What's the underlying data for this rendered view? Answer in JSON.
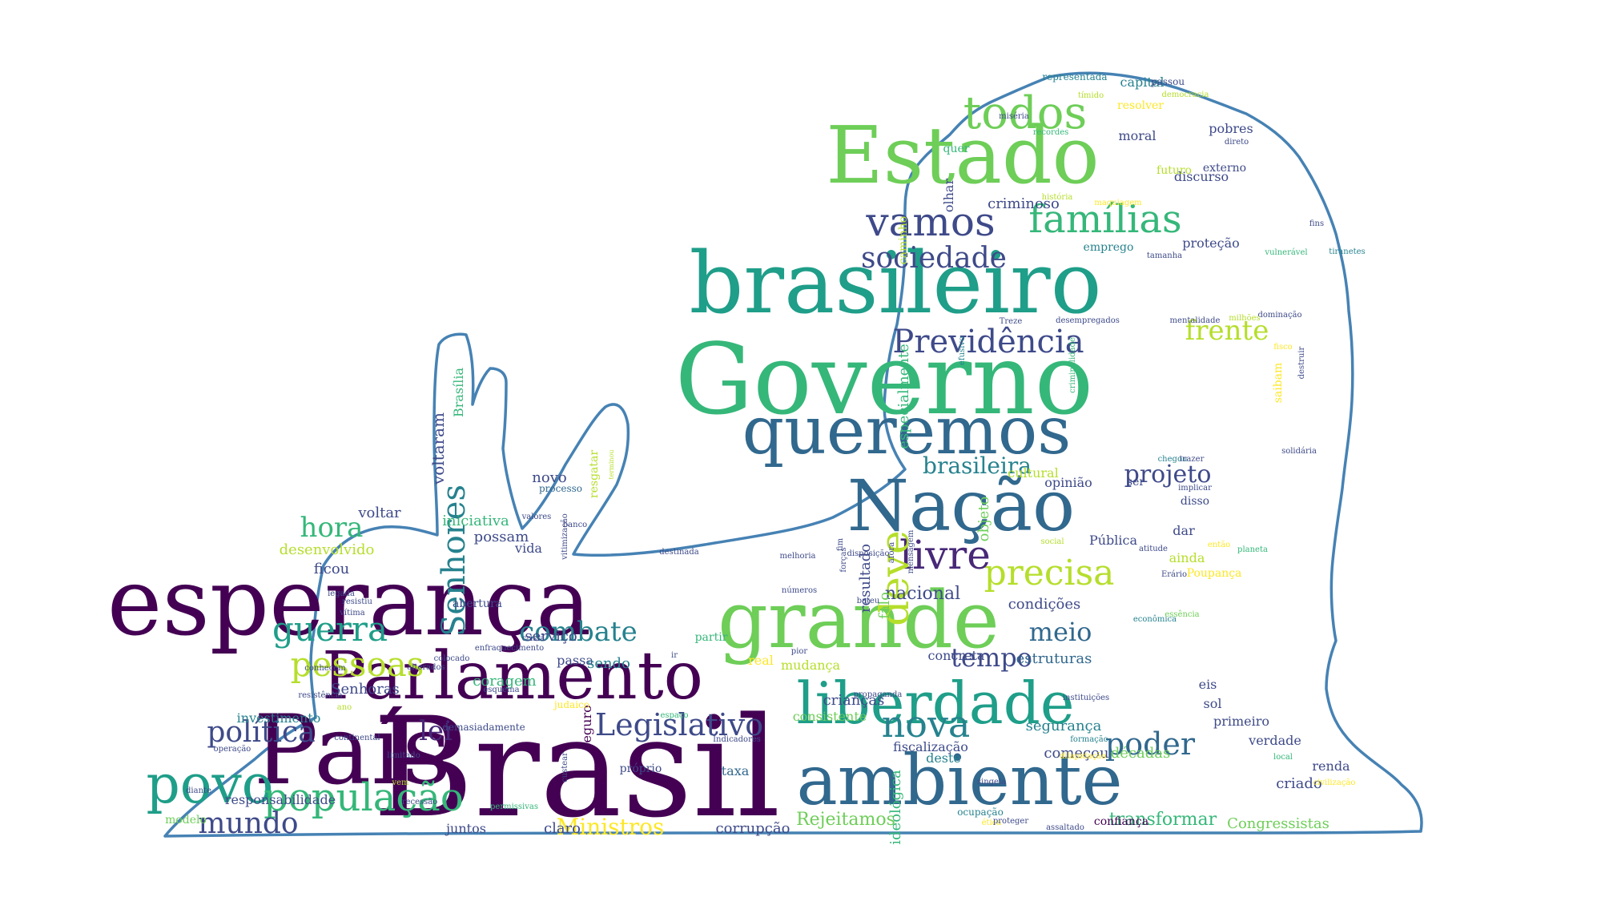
{
  "outline_color": "#4682b4",
  "palette": [
    "#440154",
    "#482878",
    "#3e4a89",
    "#31688e",
    "#26828e",
    "#1f9e89",
    "#35b779",
    "#6ece58",
    "#b5de2b",
    "#fde725"
  ],
  "words": [
    {
      "text": "Brasil",
      "c": "#440154"
    },
    {
      "text": "País",
      "c": "#440154"
    },
    {
      "text": "esperança",
      "c": "#440154"
    },
    {
      "text": "Governo",
      "c": "#35b779"
    },
    {
      "text": "brasileiro",
      "c": "#1f9e89"
    },
    {
      "text": "Estado",
      "c": "#6ece58"
    },
    {
      "text": "Nação",
      "c": "#31688e"
    },
    {
      "text": "queremos",
      "c": "#31688e"
    },
    {
      "text": "grande",
      "c": "#6ece58"
    },
    {
      "text": "ambiente",
      "c": "#31688e"
    },
    {
      "text": "Parlamento",
      "c": "#440154"
    },
    {
      "text": "liberdade",
      "c": "#1f9e89"
    },
    {
      "text": "povo",
      "c": "#1f9e89"
    },
    {
      "text": "população",
      "c": "#35b779"
    },
    {
      "text": "pessoas",
      "c": "#b5de2b"
    },
    {
      "text": "guerra",
      "c": "#1f9e89"
    },
    {
      "text": "todos",
      "c": "#6ece58"
    },
    {
      "text": "famílias",
      "c": "#35b779"
    },
    {
      "text": "vamos",
      "c": "#3e4a89"
    },
    {
      "text": "Previdência",
      "c": "#3e4a89"
    },
    {
      "text": "sociedade",
      "c": "#3e4a89"
    },
    {
      "text": "Legislativo",
      "c": "#3e4a89"
    },
    {
      "text": "precisa",
      "c": "#b5de2b"
    },
    {
      "text": "livre",
      "c": "#482878"
    },
    {
      "text": "nova",
      "c": "#26828e"
    },
    {
      "text": "poder",
      "c": "#31688e"
    },
    {
      "text": "deve",
      "c": "#b5de2b"
    },
    {
      "text": "combate",
      "c": "#26828e"
    },
    {
      "text": "lei",
      "c": "#482878"
    },
    {
      "text": "política",
      "c": "#3e4a89"
    },
    {
      "text": "mundo",
      "c": "#3e4a89"
    },
    {
      "text": "frente",
      "c": "#b5de2b"
    },
    {
      "text": "projeto",
      "c": "#3e4a89"
    },
    {
      "text": "Senhores",
      "c": "#26828e"
    },
    {
      "text": "meio",
      "c": "#31688e"
    },
    {
      "text": "tempo",
      "c": "#3e4a89"
    },
    {
      "text": "brasileira",
      "c": "#26828e"
    },
    {
      "text": "hora",
      "c": "#35b779"
    },
    {
      "text": "Ministros",
      "c": "#fde725"
    },
    {
      "text": "Rejeitamos",
      "c": "#6ece58"
    },
    {
      "text": "transformar",
      "c": "#35b779"
    },
    {
      "text": "Congressistas",
      "c": "#6ece58"
    },
    {
      "text": "nacional",
      "c": "#3e4a89"
    },
    {
      "text": "condições",
      "c": "#3e4a89"
    },
    {
      "text": "estruturas",
      "c": "#31688e"
    },
    {
      "text": "segurança",
      "c": "#26828e"
    },
    {
      "text": "décadas",
      "c": "#6ece58"
    },
    {
      "text": "criado",
      "c": "#3e4a89"
    },
    {
      "text": "começou",
      "c": "#3e4a89"
    },
    {
      "text": "confiança",
      "c": "#440154"
    },
    {
      "text": "corrupção",
      "c": "#3e4a89"
    },
    {
      "text": "especialmente",
      "c": "#35b779"
    },
    {
      "text": "ideológica",
      "c": "#35b779"
    },
    {
      "text": "resultado",
      "c": "#3e4a89"
    },
    {
      "text": "falo",
      "c": "#6ece58"
    },
    {
      "text": "objeto",
      "c": "#6ece58"
    },
    {
      "text": "voltaram",
      "c": "#3e4a89"
    },
    {
      "text": "Brasília",
      "c": "#35b779"
    },
    {
      "text": "desenvolvido",
      "c": "#b5de2b"
    },
    {
      "text": "ficou",
      "c": "#3e4a89"
    },
    {
      "text": "voltar",
      "c": "#3e4a89"
    },
    {
      "text": "possam",
      "c": "#3e4a89"
    },
    {
      "text": "vida",
      "c": "#3e4a89"
    },
    {
      "text": "iniciativa",
      "c": "#35b779"
    },
    {
      "text": "novo",
      "c": "#3e4a89"
    },
    {
      "text": "processo",
      "c": "#31688e"
    },
    {
      "text": "resgatar",
      "c": "#b5de2b"
    },
    {
      "text": "terminou",
      "c": "#b5de2b"
    },
    {
      "text": "Senhoras",
      "c": "#3e4a89"
    },
    {
      "text": "coragem",
      "c": "#35b779"
    },
    {
      "text": "passa",
      "c": "#3e4a89"
    },
    {
      "text": "sendo",
      "c": "#26828e"
    },
    {
      "text": "serviço",
      "c": "#3e4a89"
    },
    {
      "text": "mudança",
      "c": "#b5de2b"
    },
    {
      "text": "real",
      "c": "#fde725"
    },
    {
      "text": "partir",
      "c": "#35b779"
    },
    {
      "text": "crianças",
      "c": "#3e4a89"
    },
    {
      "text": "seguro",
      "c": "#440154"
    },
    {
      "text": "responsabilidade",
      "c": "#3e4a89"
    },
    {
      "text": "investimento",
      "c": "#26828e"
    },
    {
      "text": "modelo",
      "c": "#6ece58"
    },
    {
      "text": "juntos",
      "c": "#3e4a89"
    },
    {
      "text": "claro",
      "c": "#3e4a89"
    },
    {
      "text": "consistente",
      "c": "#6ece58"
    },
    {
      "text": "taxa",
      "c": "#31688e"
    },
    {
      "text": "próprio",
      "c": "#3e4a89"
    },
    {
      "text": "deste",
      "c": "#26828e"
    },
    {
      "text": "fiscalização",
      "c": "#3e4a89"
    },
    {
      "text": "concreta",
      "c": "#3e4a89"
    },
    {
      "text": "verdade",
      "c": "#3e4a89"
    },
    {
      "text": "primeiro",
      "c": "#3e4a89"
    },
    {
      "text": "renda",
      "c": "#3e4a89"
    },
    {
      "text": "sol",
      "c": "#3e4a89"
    },
    {
      "text": "eis",
      "c": "#3e4a89"
    },
    {
      "text": "ainda",
      "c": "#b5de2b"
    },
    {
      "text": "dar",
      "c": "#3e4a89"
    },
    {
      "text": "Pública",
      "c": "#3e4a89"
    },
    {
      "text": "Poupança",
      "c": "#fde725"
    },
    {
      "text": "disso",
      "c": "#3e4a89"
    },
    {
      "text": "cultural",
      "c": "#b5de2b"
    },
    {
      "text": "opinião",
      "c": "#3e4a89"
    },
    {
      "text": "ser",
      "c": "#3e4a89"
    },
    {
      "text": "saibam",
      "c": "#fde725"
    },
    {
      "text": "discurso",
      "c": "#3e4a89"
    },
    {
      "text": "proteção",
      "c": "#3e4a89"
    },
    {
      "text": "emprego",
      "c": "#26828e"
    },
    {
      "text": "criminoso",
      "c": "#3e4a89"
    },
    {
      "text": "pobres",
      "c": "#3e4a89"
    },
    {
      "text": "externo",
      "c": "#3e4a89"
    },
    {
      "text": "futuro",
      "c": "#b5de2b"
    },
    {
      "text": "moral",
      "c": "#3e4a89"
    },
    {
      "text": "capital",
      "c": "#26828e"
    },
    {
      "text": "resolver",
      "c": "#fde725"
    },
    {
      "text": "quer",
      "c": "#35b779"
    },
    {
      "text": "olhar",
      "c": "#3e4a89"
    },
    {
      "text": "caminho",
      "c": "#b5de2b"
    },
    {
      "text": "representada",
      "c": "#26828e"
    },
    {
      "text": "passou",
      "c": "#3e4a89"
    },
    {
      "text": "democracia",
      "c": "#b5de2b"
    },
    {
      "text": "tímido",
      "c": "#b5de2b"
    },
    {
      "text": "miséria",
      "c": "#3e4a89"
    },
    {
      "text": "recordes",
      "c": "#35b779"
    },
    {
      "text": "direto",
      "c": "#3e4a89"
    },
    {
      "text": "história",
      "c": "#b5de2b"
    },
    {
      "text": "maquiagem",
      "c": "#fde725"
    },
    {
      "text": "fins",
      "c": "#3e4a89"
    },
    {
      "text": "tamanha",
      "c": "#3e4a89"
    },
    {
      "text": "vulnerável",
      "c": "#35b779"
    },
    {
      "text": "tiranetes",
      "c": "#26828e"
    },
    {
      "text": "dominação",
      "c": "#3e4a89"
    },
    {
      "text": "Treze",
      "c": "#3e4a89"
    },
    {
      "text": "desempregados",
      "c": "#3e4a89"
    },
    {
      "text": "mentalidade",
      "c": "#3e4a89"
    },
    {
      "text": "milhões",
      "c": "#b5de2b"
    },
    {
      "text": "efusivo",
      "c": "#26828e"
    },
    {
      "text": "fisco",
      "c": "#fde725"
    },
    {
      "text": "criminalidade",
      "c": "#35b779"
    },
    {
      "text": "chegou",
      "c": "#26828e"
    },
    {
      "text": "trazer",
      "c": "#3e4a89"
    },
    {
      "text": "destruir",
      "c": "#3e4a89"
    },
    {
      "text": "solidária",
      "c": "#3e4a89"
    },
    {
      "text": "implicar",
      "c": "#3e4a89"
    },
    {
      "text": "planeta",
      "c": "#35b779"
    },
    {
      "text": "então",
      "c": "#fde725"
    },
    {
      "text": "social",
      "c": "#b5de2b"
    },
    {
      "text": "atitude",
      "c": "#3e4a89"
    },
    {
      "text": "Erário",
      "c": "#3e4a89"
    },
    {
      "text": "econômica",
      "c": "#26828e"
    },
    {
      "text": "essência",
      "c": "#6ece58"
    },
    {
      "text": "forças",
      "c": "#3e4a89"
    },
    {
      "text": "disposição",
      "c": "#3e4a89"
    },
    {
      "text": "afora",
      "c": "#3e4a89"
    },
    {
      "text": "mensagem",
      "c": "#3e4a89"
    },
    {
      "text": "bateu",
      "c": "#3e4a89"
    },
    {
      "text": "números",
      "c": "#3e4a89"
    },
    {
      "text": "melhoria",
      "c": "#3e4a89"
    },
    {
      "text": "fim",
      "c": "#3e4a89"
    },
    {
      "text": "destinada",
      "c": "#3e4a89"
    },
    {
      "text": "banco",
      "c": "#3e4a89"
    },
    {
      "text": "vitimização",
      "c": "#3e4a89"
    },
    {
      "text": "valores",
      "c": "#3e4a89"
    },
    {
      "text": "abertura",
      "c": "#3e4a89"
    },
    {
      "text": "cristã",
      "c": "#3e4a89"
    },
    {
      "text": "enfraquecimento",
      "c": "#3e4a89"
    },
    {
      "text": "ir",
      "c": "#3e4a89"
    },
    {
      "text": "pior",
      "c": "#3e4a89"
    },
    {
      "text": "esquema",
      "c": "#3e4a89"
    },
    {
      "text": "colocado",
      "c": "#3e4a89"
    },
    {
      "text": "alterados",
      "c": "#3e4a89"
    },
    {
      "text": "conhecem",
      "c": "#3e4a89"
    },
    {
      "text": "vítima",
      "c": "#3e4a89"
    },
    {
      "text": "resistiu",
      "c": "#3e4a89"
    },
    {
      "text": "legada",
      "c": "#3e4a89"
    },
    {
      "text": "resistência",
      "c": "#3e4a89"
    },
    {
      "text": "ano",
      "c": "#b5de2b"
    },
    {
      "text": "judaico",
      "c": "#fde725"
    },
    {
      "text": "espaço",
      "c": "#35b779"
    },
    {
      "text": "demasiadamente",
      "c": "#3e4a89"
    },
    {
      "text": "Indicadores",
      "c": "#3e4a89"
    },
    {
      "text": "propaganda",
      "c": "#3e4a89"
    },
    {
      "text": "instituições",
      "c": "#3e4a89"
    },
    {
      "text": "formação",
      "c": "#26828e"
    },
    {
      "text": "dilapidação",
      "c": "#fde725"
    },
    {
      "text": "local",
      "c": "#35b779"
    },
    {
      "text": "civilização",
      "c": "#fde725"
    },
    {
      "text": "singela",
      "c": "#3e4a89"
    },
    {
      "text": "ocupação",
      "c": "#26828e"
    },
    {
      "text": "ética",
      "c": "#fde725"
    },
    {
      "text": "proteger",
      "c": "#3e4a89"
    },
    {
      "text": "assaltado",
      "c": "#3e4a89"
    },
    {
      "text": "operação",
      "c": "#3e4a89"
    },
    {
      "text": "continental",
      "c": "#3e4a89"
    },
    {
      "text": "limitado",
      "c": "#3e4a89"
    },
    {
      "text": "vem",
      "c": "#b5de2b"
    },
    {
      "text": "recessão",
      "c": "#3e4a89"
    },
    {
      "text": "permissivas",
      "c": "#35b779"
    },
    {
      "text": "diante",
      "c": "#3e4a89"
    },
    {
      "text": "custear",
      "c": "#3e4a89"
    },
    {
      "text": "maior",
      "c": "#3e4a89"
    },
    {
      "text": "informação",
      "c": "#3e4a89"
    }
  ]
}
